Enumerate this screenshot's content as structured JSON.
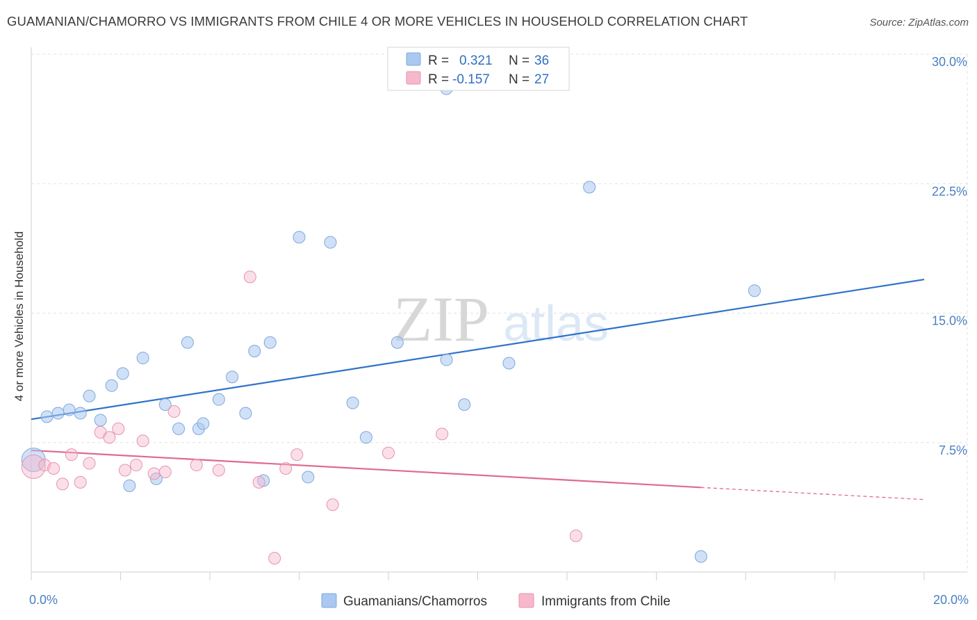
{
  "header": {
    "title": "GUAMANIAN/CHAMORRO VS IMMIGRANTS FROM CHILE 4 OR MORE VEHICLES IN HOUSEHOLD CORRELATION CHART",
    "source": "Source: ZipAtlas.com"
  },
  "watermark": {
    "zip": "ZIP",
    "atlas": "atlas"
  },
  "legend": {
    "r_label": "R =",
    "n_label": "N =",
    "rows": [
      {
        "r": "0.321",
        "n": "36"
      },
      {
        "r": "-0.157",
        "n": "27"
      }
    ]
  },
  "chart_data": {
    "type": "scatter",
    "title": "GUAMANIAN/CHAMORRO VS IMMIGRANTS FROM CHILE 4 OR MORE VEHICLES IN HOUSEHOLD CORRELATION CHART",
    "xlabel": "",
    "ylabel": "4 or more Vehicles in Household",
    "xlim": [
      0,
      20
    ],
    "ylim": [
      0,
      30
    ],
    "x_ticks": [
      "0.0%",
      "20.0%"
    ],
    "y_ticks": [
      {
        "value": 7.5,
        "label": "7.5%"
      },
      {
        "value": 15,
        "label": "15.0%"
      },
      {
        "value": 22.5,
        "label": "22.5%"
      },
      {
        "value": 30,
        "label": "30.0%"
      }
    ],
    "grid": true,
    "legend_position": "top-center",
    "colors": {
      "series1": "#aac8f0",
      "series1_line": "#2f72c9",
      "series2": "#f7b8cb",
      "series2_line": "#e0698f"
    },
    "series": [
      {
        "name": "Guamanians/Chamorros",
        "points": [
          [
            0.05,
            6.5
          ],
          [
            0.35,
            9.0
          ],
          [
            0.6,
            9.2
          ],
          [
            0.85,
            9.4
          ],
          [
            1.1,
            9.2
          ],
          [
            1.3,
            10.2
          ],
          [
            1.55,
            8.8
          ],
          [
            1.8,
            10.8
          ],
          [
            2.05,
            11.5
          ],
          [
            2.2,
            5.0
          ],
          [
            2.5,
            12.4
          ],
          [
            2.8,
            5.4
          ],
          [
            3.0,
            9.7
          ],
          [
            3.3,
            8.3
          ],
          [
            3.5,
            13.3
          ],
          [
            3.75,
            8.3
          ],
          [
            3.85,
            8.6
          ],
          [
            4.2,
            10.0
          ],
          [
            4.5,
            11.3
          ],
          [
            4.8,
            9.2
          ],
          [
            5.0,
            12.8
          ],
          [
            5.2,
            5.3
          ],
          [
            5.35,
            13.3
          ],
          [
            6.0,
            19.4
          ],
          [
            6.2,
            5.5
          ],
          [
            6.7,
            19.1
          ],
          [
            7.2,
            9.8
          ],
          [
            7.5,
            7.8
          ],
          [
            8.2,
            13.3
          ],
          [
            9.3,
            28.0
          ],
          [
            9.3,
            12.3
          ],
          [
            9.7,
            9.7
          ],
          [
            10.7,
            12.1
          ],
          [
            12.5,
            22.3
          ],
          [
            15.0,
            0.9
          ],
          [
            16.2,
            16.3
          ]
        ],
        "trend": {
          "x": [
            0,
            20
          ],
          "y": [
            8.85,
            16.95
          ]
        }
      },
      {
        "name": "Immigrants from Chile",
        "points": [
          [
            0.05,
            6.1
          ],
          [
            0.3,
            6.2
          ],
          [
            0.5,
            6.0
          ],
          [
            0.7,
            5.1
          ],
          [
            0.9,
            6.8
          ],
          [
            1.1,
            5.2
          ],
          [
            1.3,
            6.3
          ],
          [
            1.55,
            8.1
          ],
          [
            1.75,
            7.8
          ],
          [
            1.95,
            8.3
          ],
          [
            2.1,
            5.9
          ],
          [
            2.35,
            6.2
          ],
          [
            2.5,
            7.6
          ],
          [
            2.75,
            5.7
          ],
          [
            3.0,
            5.8
          ],
          [
            3.2,
            9.3
          ],
          [
            3.7,
            6.2
          ],
          [
            4.2,
            5.9
          ],
          [
            4.9,
            17.1
          ],
          [
            5.1,
            5.2
          ],
          [
            5.45,
            0.8
          ],
          [
            5.7,
            6.0
          ],
          [
            5.95,
            6.8
          ],
          [
            6.75,
            3.9
          ],
          [
            8.0,
            6.9
          ],
          [
            9.2,
            8.0
          ],
          [
            12.2,
            2.1
          ]
        ],
        "trend": {
          "x": [
            0,
            15.0
          ],
          "y": [
            7.05,
            4.9
          ]
        },
        "trend_dashed": {
          "x": [
            15.0,
            20
          ],
          "y": [
            4.9,
            4.2
          ]
        }
      }
    ]
  }
}
